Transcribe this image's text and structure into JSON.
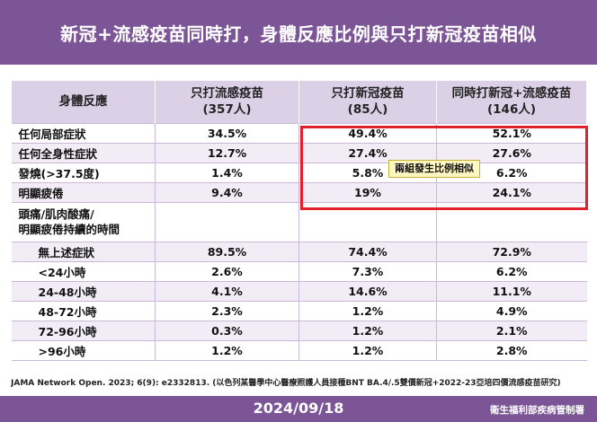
{
  "header": {
    "title": "新冠+流感疫苗同時打，身體反應比例與只打新冠疫苗相似"
  },
  "table": {
    "columns": [
      {
        "label": "身體反應",
        "sub": ""
      },
      {
        "label": "只打流感疫苗",
        "sub": "(357人)"
      },
      {
        "label": "只打新冠疫苗",
        "sub": "(85人)"
      },
      {
        "label": "同時打新冠+流感疫苗",
        "sub": "(146人)"
      }
    ],
    "rows": [
      {
        "label": "任何局部症狀",
        "values": [
          "34.5%",
          "49.4%",
          "52.1%"
        ]
      },
      {
        "label": "任何全身性症狀",
        "values": [
          "12.7%",
          "27.4%",
          "27.6%"
        ]
      },
      {
        "label": "發燒(>37.5度)",
        "values": [
          "1.4%",
          "5.8%",
          "6.2%"
        ]
      },
      {
        "label": "明顯疲倦",
        "values": [
          "9.4%",
          "19%",
          "24.1%"
        ]
      },
      {
        "label": "頭痛/肌肉酸痛/",
        "label2": "明顯疲倦持續的時間",
        "values": [
          "",
          "",
          ""
        ]
      },
      {
        "label": "無上述症狀",
        "values": [
          "89.5%",
          "74.4%",
          "72.9%"
        ]
      },
      {
        "label": "<24小時",
        "values": [
          "2.6%",
          "7.3%",
          "6.2%"
        ]
      },
      {
        "label": "24-48小時",
        "values": [
          "4.1%",
          "14.6%",
          "11.1%"
        ]
      },
      {
        "label": "48-72小時",
        "values": [
          "2.3%",
          "1.2%",
          "4.9%"
        ]
      },
      {
        "label": "72-96小時",
        "values": [
          "0.3%",
          "1.2%",
          "2.1%"
        ]
      },
      {
        "label": ">96小時",
        "values": [
          "1.2%",
          "1.2%",
          "2.8%"
        ]
      }
    ]
  },
  "callout": "兩組發生比例相似",
  "citation": "JAMA Network Open. 2023; 6(9): e2332813. (以色列某醫學中心醫療照護人員接種BNT BA.4/.5雙價新冠+2022-23亞培四價流感疫苗研究)",
  "footer": {
    "date": "2024/09/18",
    "agency": "衛生福利部疾病管制署"
  },
  "colors": {
    "brand": "#7c5596",
    "header_row": "#dcd0e7",
    "stripe": "#f1ecf5",
    "highlight": "#e0202a",
    "callout_bg": "#fff7c2"
  }
}
